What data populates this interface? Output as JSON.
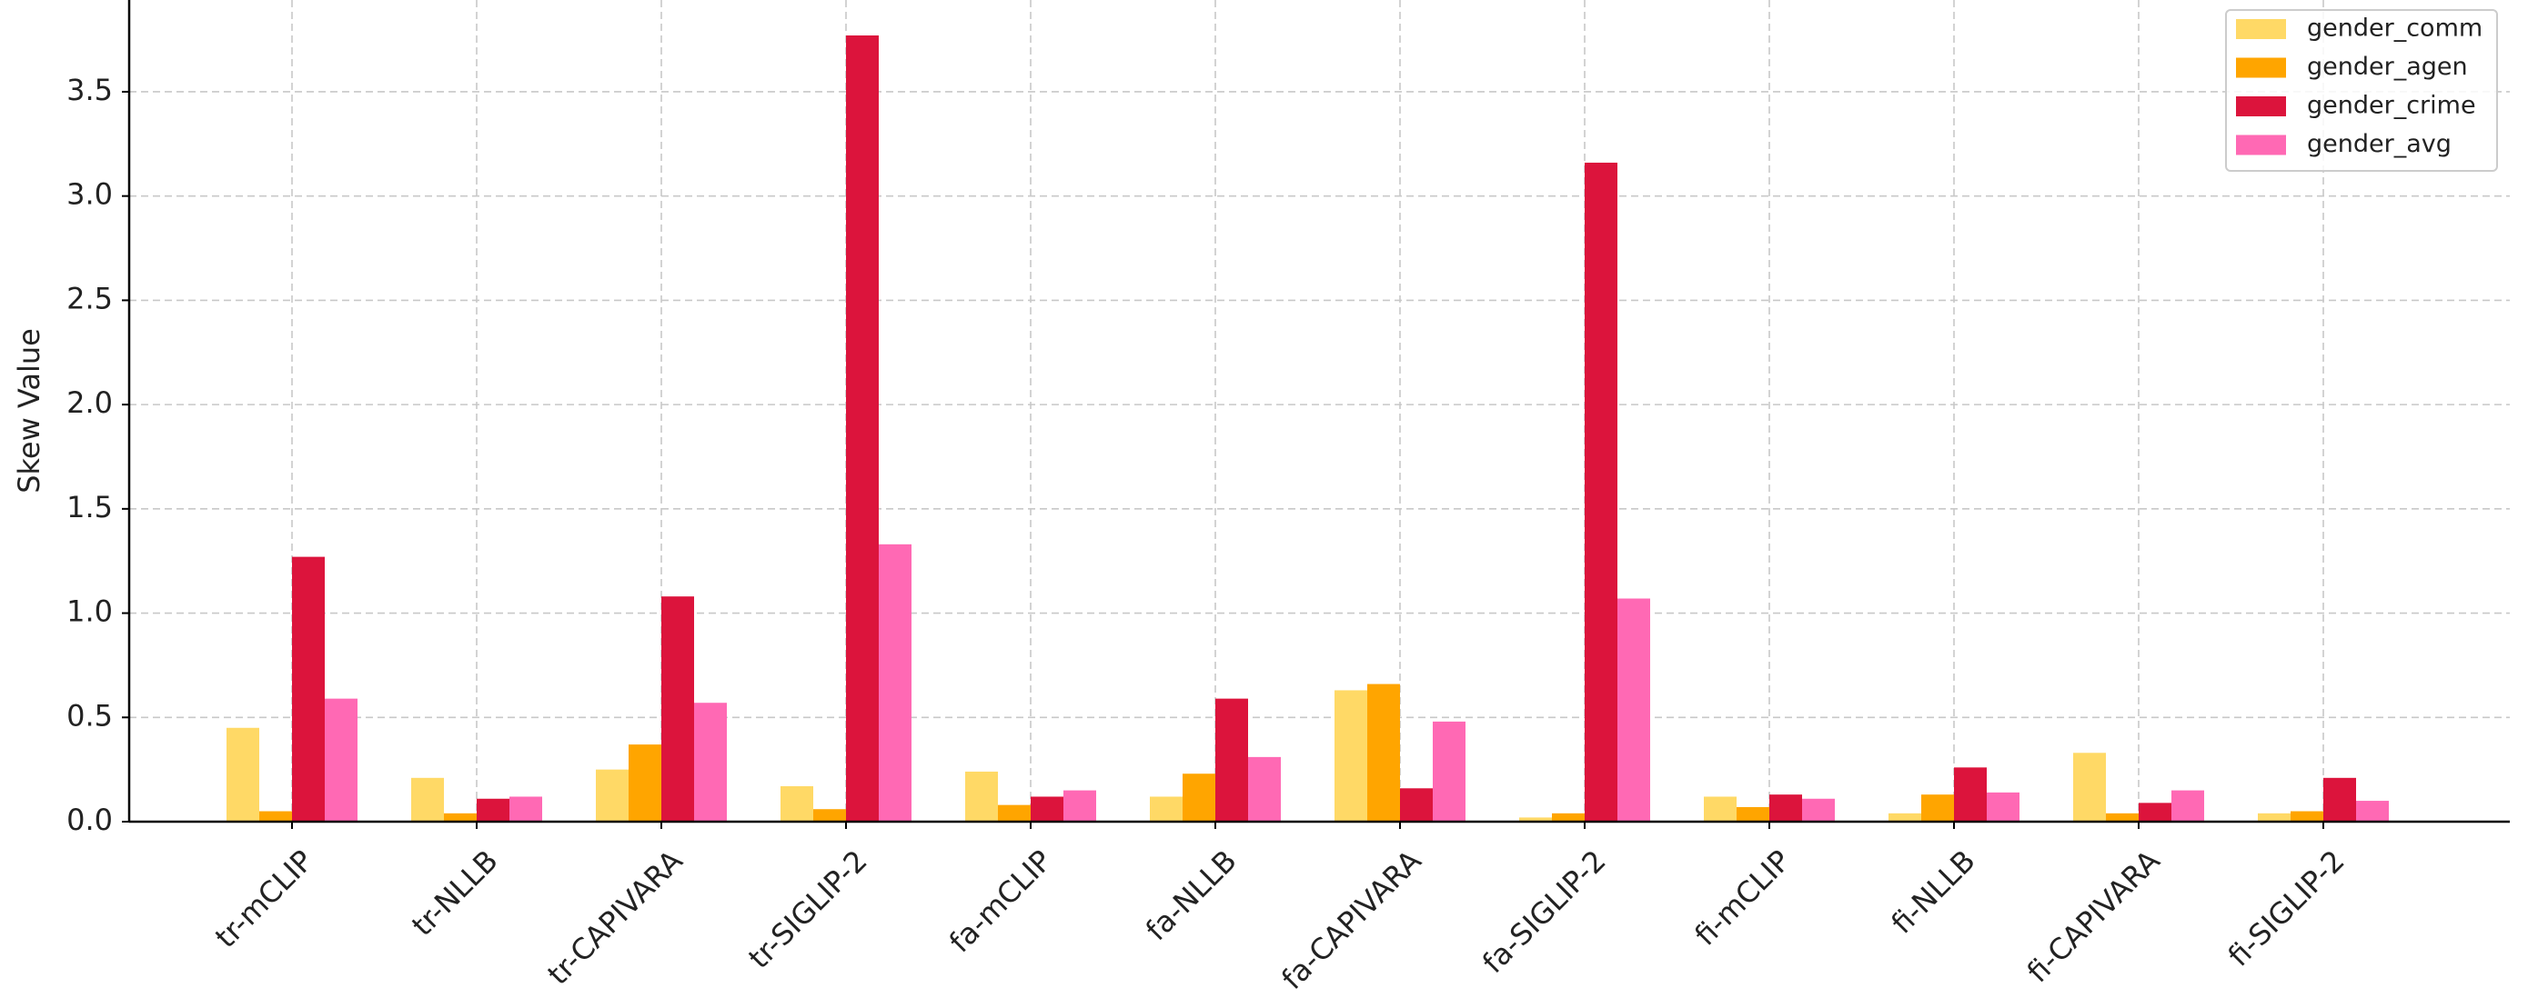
{
  "chart_data": {
    "type": "bar",
    "ylabel": "Skew Value",
    "categories": [
      "tr-mCLIP",
      "tr-NLLB",
      "tr-CAPIVARA",
      "tr-SIGLIP-2",
      "fa-mCLIP",
      "fa-NLLB",
      "fa-CAPIVARA",
      "fa-SIGLIP-2",
      "fi-mCLIP",
      "fi-NLLB",
      "fi-CAPIVARA",
      "fi-SIGLIP-2"
    ],
    "series": [
      {
        "name": "gender_comm",
        "color": "#ffd966",
        "values": [
          0.45,
          0.21,
          0.25,
          0.17,
          0.24,
          0.12,
          0.63,
          0.02,
          0.12,
          0.04,
          0.33,
          0.04
        ]
      },
      {
        "name": "gender_agen",
        "color": "#ffa500",
        "values": [
          0.05,
          0.04,
          0.37,
          0.06,
          0.08,
          0.23,
          0.66,
          0.04,
          0.07,
          0.13,
          0.04,
          0.05
        ]
      },
      {
        "name": "gender_crime",
        "color": "#dc143c",
        "values": [
          1.27,
          0.11,
          1.08,
          3.77,
          0.12,
          0.59,
          0.16,
          3.16,
          0.13,
          0.26,
          0.09,
          0.21
        ]
      },
      {
        "name": "gender_avg",
        "color": "#ff69b4",
        "values": [
          0.59,
          0.12,
          0.57,
          1.33,
          0.15,
          0.31,
          0.48,
          1.07,
          0.11,
          0.14,
          0.15,
          0.1
        ]
      }
    ],
    "ylim": [
      0,
      3.94
    ],
    "yticks": [
      {
        "value": 0,
        "label": "0.0"
      },
      0.5,
      {
        "value": 1,
        "label": "1.0"
      },
      1.5,
      {
        "value": 2,
        "label": "2.0"
      },
      2.5,
      {
        "value": 3,
        "label": "3.0"
      },
      3.5
    ],
    "grid": true,
    "legend": "upper right"
  }
}
